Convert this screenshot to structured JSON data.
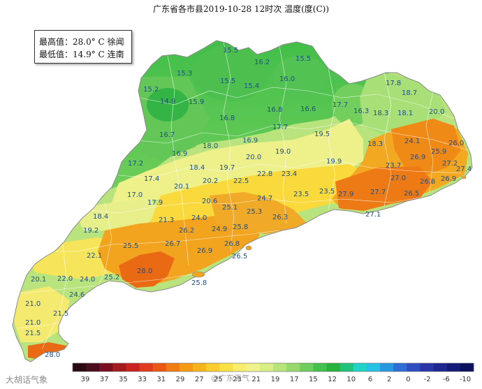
{
  "title": "广东省各市县2019-10-28 12时次 温度(度(C))",
  "stats": {
    "max_label": "最高值：",
    "max_value": "28.0° C",
    "max_place": "徐闻",
    "min_label": "最低值：",
    "min_value": "14.9° C",
    "min_place": "连南"
  },
  "stations": [
    {
      "v": "15.5"
    },
    {
      "v": "16.2"
    },
    {
      "v": "15.5"
    },
    {
      "v": "15.3"
    },
    {
      "v": "15.2"
    },
    {
      "v": "15.5"
    },
    {
      "v": "15.4"
    },
    {
      "v": "16.0"
    },
    {
      "v": "17.8"
    },
    {
      "v": "18.7"
    },
    {
      "v": "14.9"
    },
    {
      "v": "15.9"
    },
    {
      "v": "16.8"
    },
    {
      "v": "16.6"
    },
    {
      "v": "17.7"
    },
    {
      "v": "16.3"
    },
    {
      "v": "18.3"
    },
    {
      "v": "18.1"
    },
    {
      "v": "20.0"
    },
    {
      "v": "16.8"
    },
    {
      "v": "17.7"
    },
    {
      "v": "16.7"
    },
    {
      "v": "19.5"
    },
    {
      "v": "18.0"
    },
    {
      "v": "16.9"
    },
    {
      "v": "18.3"
    },
    {
      "v": "24.1"
    },
    {
      "v": "26.0"
    },
    {
      "v": "16.9"
    },
    {
      "v": "19.0"
    },
    {
      "v": "20.0"
    },
    {
      "v": "25.9"
    },
    {
      "v": "17.2"
    },
    {
      "v": "18.4"
    },
    {
      "v": "19.7"
    },
    {
      "v": "19.9"
    },
    {
      "v": "26.9"
    },
    {
      "v": "27.2"
    },
    {
      "v": "27.4"
    },
    {
      "v": "17.4"
    },
    {
      "v": "22.8"
    },
    {
      "v": "23.4"
    },
    {
      "v": "23.7"
    },
    {
      "v": "20.1"
    },
    {
      "v": "20.2"
    },
    {
      "v": "22.5"
    },
    {
      "v": "27.0"
    },
    {
      "v": "26.8"
    },
    {
      "v": "26.9"
    },
    {
      "v": "17.0"
    },
    {
      "v": "24.7"
    },
    {
      "v": "23.5"
    },
    {
      "v": "23.5"
    },
    {
      "v": "27.9"
    },
    {
      "v": "27.7"
    },
    {
      "v": "26.5"
    },
    {
      "v": "17.9"
    },
    {
      "v": "20.6"
    },
    {
      "v": "25.1"
    },
    {
      "v": "18.4"
    },
    {
      "v": "25.3"
    },
    {
      "v": "26.3"
    },
    {
      "v": "27.1"
    },
    {
      "v": "21.3"
    },
    {
      "v": "24.0"
    },
    {
      "v": "19.2"
    },
    {
      "v": "26.2"
    },
    {
      "v": "24.9"
    },
    {
      "v": "25.8"
    },
    {
      "v": "26.7"
    },
    {
      "v": "26.8"
    },
    {
      "v": "22.1"
    },
    {
      "v": "25.5"
    },
    {
      "v": "26.9"
    },
    {
      "v": "26.5"
    },
    {
      "v": "28.0"
    },
    {
      "v": "20.1"
    },
    {
      "v": "22.0"
    },
    {
      "v": "24.0"
    },
    {
      "v": "25.2"
    },
    {
      "v": "25.8"
    },
    {
      "v": "24.6"
    },
    {
      "v": "21.0"
    },
    {
      "v": "21.5"
    },
    {
      "v": "21.0"
    },
    {
      "v": "21.5"
    },
    {
      "v": "28.0"
    }
  ],
  "legend": {
    "colors": [
      "#2a0a12",
      "#4a0d1e",
      "#7a0f22",
      "#a51c1c",
      "#c9241f",
      "#e03b1d",
      "#ea5a16",
      "#f07d12",
      "#f49a14",
      "#f7b51c",
      "#f9cd2e",
      "#fbe045",
      "#f9ee6c",
      "#eef38c",
      "#d8ef86",
      "#b8e57a",
      "#96da6b",
      "#6fcd5e",
      "#45c04c",
      "#27b43e",
      "#21c27a",
      "#1fd3c7",
      "#27c1e6",
      "#2a97e2",
      "#2d6fd4",
      "#2f4dbe",
      "#2b36a6",
      "#1f2690",
      "#151a78",
      "#0c0f5c"
    ],
    "labels": [
      "39",
      "37",
      "35",
      "33",
      "31",
      "29",
      "27",
      "25",
      "23",
      "21",
      "19",
      "17",
      "15",
      "12",
      "10",
      "6",
      "2",
      "0",
      "-2",
      "-6",
      "-10"
    ]
  },
  "watermarks": {
    "left": "大胡话气象",
    "center": "@广东天气"
  }
}
